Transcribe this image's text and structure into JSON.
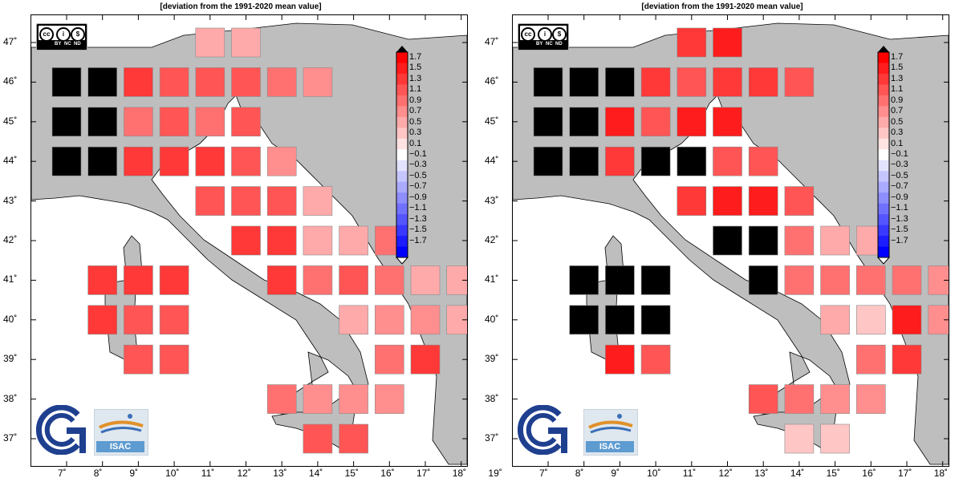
{
  "panels": [
    {
      "title": "[deviation from the 1991-2020 mean value]",
      "cells": [
        {
          "lon": 7,
          "lat": 46,
          "v": "black"
        },
        {
          "lon": 8,
          "lat": 46,
          "v": "black"
        },
        {
          "lon": 9,
          "lat": 46,
          "v": 1.3
        },
        {
          "lon": 10,
          "lat": 46,
          "v": 1.1
        },
        {
          "lon": 11,
          "lat": 46,
          "v": 1.1
        },
        {
          "lon": 12,
          "lat": 46,
          "v": 1.1
        },
        {
          "lon": 13,
          "lat": 46,
          "v": 0.9
        },
        {
          "lon": 14,
          "lat": 46,
          "v": 0.7
        },
        {
          "lon": 11,
          "lat": 47,
          "v": 0.5
        },
        {
          "lon": 12,
          "lat": 47,
          "v": 0.5
        },
        {
          "lon": 7,
          "lat": 45,
          "v": "black"
        },
        {
          "lon": 8,
          "lat": 45,
          "v": "black"
        },
        {
          "lon": 9,
          "lat": 45,
          "v": 0.9
        },
        {
          "lon": 10,
          "lat": 45,
          "v": 1.1
        },
        {
          "lon": 11,
          "lat": 45,
          "v": 0.9
        },
        {
          "lon": 12,
          "lat": 45,
          "v": 1.1
        },
        {
          "lon": 7,
          "lat": 44,
          "v": "black"
        },
        {
          "lon": 8,
          "lat": 44,
          "v": "black"
        },
        {
          "lon": 9,
          "lat": 44,
          "v": 1.3
        },
        {
          "lon": 10,
          "lat": 44,
          "v": 1.3
        },
        {
          "lon": 11,
          "lat": 44,
          "v": 1.3
        },
        {
          "lon": 12,
          "lat": 44,
          "v": 1.1
        },
        {
          "lon": 13,
          "lat": 44,
          "v": 0.7
        },
        {
          "lon": 11,
          "lat": 43,
          "v": 1.1
        },
        {
          "lon": 12,
          "lat": 43,
          "v": 1.1
        },
        {
          "lon": 13,
          "lat": 43,
          "v": 1.1
        },
        {
          "lon": 14,
          "lat": 43,
          "v": 0.5
        },
        {
          "lon": 12,
          "lat": 42,
          "v": 1.3
        },
        {
          "lon": 13,
          "lat": 42,
          "v": 1.3
        },
        {
          "lon": 14,
          "lat": 42,
          "v": 0.5
        },
        {
          "lon": 15,
          "lat": 42,
          "v": 0.5
        },
        {
          "lon": 16,
          "lat": 42,
          "v": 0.9
        },
        {
          "lon": 8,
          "lat": 41,
          "v": 1.3
        },
        {
          "lon": 9,
          "lat": 41,
          "v": 1.3
        },
        {
          "lon": 10,
          "lat": 41,
          "v": 1.3
        },
        {
          "lon": 13,
          "lat": 41,
          "v": 1.3
        },
        {
          "lon": 14,
          "lat": 41,
          "v": 0.9
        },
        {
          "lon": 15,
          "lat": 41,
          "v": 1.1
        },
        {
          "lon": 16,
          "lat": 41,
          "v": 0.9
        },
        {
          "lon": 17,
          "lat": 41,
          "v": 0.5
        },
        {
          "lon": 18,
          "lat": 41,
          "v": 0.5
        },
        {
          "lon": 8,
          "lat": 40,
          "v": 1.3
        },
        {
          "lon": 9,
          "lat": 40,
          "v": 1.1
        },
        {
          "lon": 10,
          "lat": 40,
          "v": 1.1
        },
        {
          "lon": 15,
          "lat": 40,
          "v": 0.5
        },
        {
          "lon": 16,
          "lat": 40,
          "v": 0.7
        },
        {
          "lon": 17,
          "lat": 40,
          "v": 0.7
        },
        {
          "lon": 18,
          "lat": 40,
          "v": 0.5
        },
        {
          "lon": 9,
          "lat": 39,
          "v": 1.1
        },
        {
          "lon": 10,
          "lat": 39,
          "v": 1.1
        },
        {
          "lon": 16,
          "lat": 39,
          "v": 0.9
        },
        {
          "lon": 17,
          "lat": 39,
          "v": 1.3
        },
        {
          "lon": 13,
          "lat": 38,
          "v": 0.9
        },
        {
          "lon": 14,
          "lat": 38,
          "v": 0.7
        },
        {
          "lon": 15,
          "lat": 38,
          "v": 0.7
        },
        {
          "lon": 16,
          "lat": 38,
          "v": 0.7
        },
        {
          "lon": 14,
          "lat": 37,
          "v": 1.1
        },
        {
          "lon": 15,
          "lat": 37,
          "v": 1.1
        }
      ]
    },
    {
      "title": "[deviation from the 1991-2020 mean value]",
      "cells": [
        {
          "lon": 7,
          "lat": 46,
          "v": "black"
        },
        {
          "lon": 8,
          "lat": 46,
          "v": "black"
        },
        {
          "lon": 9,
          "lat": 46,
          "v": "black"
        },
        {
          "lon": 10,
          "lat": 46,
          "v": 1.3
        },
        {
          "lon": 11,
          "lat": 46,
          "v": 1.1
        },
        {
          "lon": 12,
          "lat": 46,
          "v": 1.3
        },
        {
          "lon": 13,
          "lat": 46,
          "v": 1.3
        },
        {
          "lon": 14,
          "lat": 46,
          "v": 1.1
        },
        {
          "lon": 11,
          "lat": 47,
          "v": 1.3
        },
        {
          "lon": 12,
          "lat": 47,
          "v": 1.5
        },
        {
          "lon": 7,
          "lat": 45,
          "v": "black"
        },
        {
          "lon": 8,
          "lat": 45,
          "v": "black"
        },
        {
          "lon": 9,
          "lat": 45,
          "v": 1.5
        },
        {
          "lon": 10,
          "lat": 45,
          "v": 1.1
        },
        {
          "lon": 11,
          "lat": 45,
          "v": 1.5
        },
        {
          "lon": 12,
          "lat": 45,
          "v": 1.5
        },
        {
          "lon": 7,
          "lat": 44,
          "v": "black"
        },
        {
          "lon": 8,
          "lat": 44,
          "v": "black"
        },
        {
          "lon": 9,
          "lat": 44,
          "v": 1.3
        },
        {
          "lon": 10,
          "lat": 44,
          "v": "black"
        },
        {
          "lon": 11,
          "lat": 44,
          "v": "black"
        },
        {
          "lon": 12,
          "lat": 44,
          "v": 1.1
        },
        {
          "lon": 13,
          "lat": 44,
          "v": 1.1
        },
        {
          "lon": 11,
          "lat": 43,
          "v": 1.3
        },
        {
          "lon": 12,
          "lat": 43,
          "v": 1.5
        },
        {
          "lon": 13,
          "lat": 43,
          "v": 1.5
        },
        {
          "lon": 14,
          "lat": 43,
          "v": 1.1
        },
        {
          "lon": 12,
          "lat": 42,
          "v": "black"
        },
        {
          "lon": 13,
          "lat": 42,
          "v": "black"
        },
        {
          "lon": 14,
          "lat": 42,
          "v": 0.9
        },
        {
          "lon": 15,
          "lat": 42,
          "v": 0.5
        },
        {
          "lon": 16,
          "lat": 42,
          "v": 0.5
        },
        {
          "lon": 8,
          "lat": 41,
          "v": "black"
        },
        {
          "lon": 9,
          "lat": 41,
          "v": "black"
        },
        {
          "lon": 10,
          "lat": 41,
          "v": "black"
        },
        {
          "lon": 13,
          "lat": 41,
          "v": "black"
        },
        {
          "lon": 14,
          "lat": 41,
          "v": 0.9
        },
        {
          "lon": 15,
          "lat": 41,
          "v": 0.9
        },
        {
          "lon": 16,
          "lat": 41,
          "v": 0.9
        },
        {
          "lon": 17,
          "lat": 41,
          "v": 0.9
        },
        {
          "lon": 18,
          "lat": 41,
          "v": 0.7
        },
        {
          "lon": 8,
          "lat": 40,
          "v": "black"
        },
        {
          "lon": 9,
          "lat": 40,
          "v": "black"
        },
        {
          "lon": 10,
          "lat": 40,
          "v": "black"
        },
        {
          "lon": 15,
          "lat": 40,
          "v": 0.5
        },
        {
          "lon": 16,
          "lat": 40,
          "v": 0.3
        },
        {
          "lon": 17,
          "lat": 40,
          "v": 1.5
        },
        {
          "lon": 18,
          "lat": 40,
          "v": 0.7
        },
        {
          "lon": 9,
          "lat": 39,
          "v": 1.5
        },
        {
          "lon": 10,
          "lat": 39,
          "v": 1.1
        },
        {
          "lon": 16,
          "lat": 39,
          "v": 0.9
        },
        {
          "lon": 17,
          "lat": 39,
          "v": 1.3
        },
        {
          "lon": 13,
          "lat": 38,
          "v": 1.1
        },
        {
          "lon": 14,
          "lat": 38,
          "v": 0.9
        },
        {
          "lon": 15,
          "lat": 38,
          "v": 0.7
        },
        {
          "lon": 16,
          "lat": 38,
          "v": 0.7
        },
        {
          "lon": 14,
          "lat": 37,
          "v": 0.3
        },
        {
          "lon": 15,
          "lat": 37,
          "v": 0.3
        }
      ]
    }
  ],
  "lon_ticks": [
    "7˚",
    "8˚",
    "9˚",
    "10˚",
    "11˚",
    "12˚",
    "13˚",
    "14˚",
    "15˚",
    "16˚",
    "17˚",
    "18˚",
    "19˚"
  ],
  "lat_ticks": [
    "47˚",
    "46˚",
    "45˚",
    "44˚",
    "43˚",
    "42˚",
    "41˚",
    "40˚",
    "39˚",
    "38˚",
    "37˚"
  ],
  "colorbar": {
    "labels": [
      "1.7",
      "1.5",
      "1.3",
      "1.1",
      "0.9",
      "0.7",
      "0.5",
      "0.3",
      "0.1",
      "−0.1",
      "−0.3",
      "−0.5",
      "−0.7",
      "−0.9",
      "−1.1",
      "−1.3",
      "−1.5",
      "−1.7"
    ],
    "colors": [
      "#ff0000",
      "#ff1c1c",
      "#ff3838",
      "#ff5555",
      "#ff7171",
      "#ff8e8e",
      "#ffaaaa",
      "#ffc6c6",
      "#ffe3e3",
      "#ffffff",
      "#e3e3ff",
      "#c6c6ff",
      "#aaaaff",
      "#8e8eff",
      "#7171ff",
      "#5555ff",
      "#3838ff",
      "#1c1cff",
      "#0000ff"
    ]
  },
  "license": {
    "cc": "cc",
    "by": "BY",
    "nc": "NC",
    "nd": "ND"
  },
  "logos": {
    "isac": "ISAC"
  },
  "colors": {
    "land": "#bebebe",
    "sea": "#ffffff",
    "no_data": "#000000",
    "grid_line": "#000000"
  }
}
